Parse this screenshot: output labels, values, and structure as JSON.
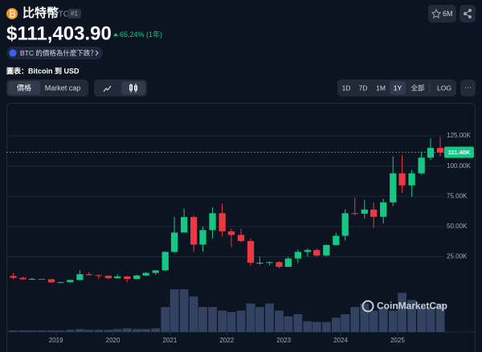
{
  "header": {
    "name": "比特幣",
    "symbol": "BTC",
    "rank": "#1",
    "watchlist": "6M",
    "price": "$111,403.90",
    "change": "65.24% (1年)",
    "question": "BTC 的價格為什麼下跌？"
  },
  "chart_label": "圖表：Bitcoin 到 USD",
  "tabs": [
    "價格",
    "Market cap"
  ],
  "ranges": [
    "1D",
    "7D",
    "1M",
    "1Y",
    "全部",
    "LOG"
  ],
  "more": "···",
  "chart_data": {
    "type": "candlestick",
    "x": [
      2018.25,
      2018.42,
      2018.58,
      2018.75,
      2018.92,
      2019.08,
      2019.25,
      2019.42,
      2019.58,
      2019.75,
      2019.92,
      2020.08,
      2020.25,
      2020.42,
      2020.58,
      2020.75,
      2020.92,
      2021.08,
      2021.25,
      2021.42,
      2021.58,
      2021.75,
      2021.92,
      2022.08,
      2022.25,
      2022.42,
      2022.58,
      2022.75,
      2022.92,
      2023.08,
      2023.25,
      2023.42,
      2023.58,
      2023.75,
      2023.92,
      2024.08,
      2024.25,
      2024.42,
      2024.58,
      2024.75,
      2024.92,
      2025.08,
      2025.25,
      2025.42,
      2025.58,
      2025.75
    ],
    "open": [
      9000,
      7500,
      6300,
      6600,
      6300,
      3800,
      3900,
      5700,
      10500,
      9700,
      9200,
      7200,
      8600,
      6600,
      9400,
      11600,
      13700,
      29000,
      45000,
      57800,
      35000,
      47000,
      61000,
      46000,
      43000,
      38000,
      20000,
      20000,
      20500,
      16600,
      23500,
      29000,
      30500,
      26000,
      34700,
      42300,
      61000,
      60600,
      64000,
      58000,
      70000,
      94000,
      84000,
      94000,
      107000,
      115000
    ],
    "high": [
      11500,
      8500,
      7500,
      6700,
      6400,
      4100,
      5900,
      13800,
      12300,
      10400,
      9600,
      10500,
      9200,
      10000,
      12400,
      13800,
      29300,
      58000,
      64800,
      59000,
      50000,
      66000,
      69000,
      48000,
      48000,
      40000,
      25000,
      21000,
      21400,
      25000,
      31000,
      31800,
      31800,
      35000,
      44700,
      64000,
      73800,
      72000,
      70000,
      73000,
      108000,
      109000,
      97000,
      112000,
      123000,
      124000
    ],
    "low": [
      6500,
      6000,
      6000,
      6200,
      3200,
      3400,
      3900,
      5400,
      9500,
      6500,
      6500,
      6900,
      3800,
      6500,
      9000,
      10000,
      13200,
      28000,
      45000,
      29000,
      29300,
      40000,
      42000,
      33000,
      37000,
      17600,
      18500,
      18000,
      15500,
      16500,
      19600,
      25000,
      25000,
      25000,
      34000,
      38500,
      59000,
      56500,
      49000,
      52500,
      66800,
      78000,
      74500,
      93000,
      105000,
      108000
    ],
    "close": [
      7500,
      6300,
      6600,
      6300,
      3800,
      3900,
      5700,
      10500,
      9700,
      9200,
      7200,
      8600,
      6600,
      9400,
      11600,
      13700,
      29000,
      45000,
      57800,
      35000,
      47000,
      61000,
      46000,
      43000,
      38000,
      20000,
      20000,
      20500,
      16600,
      23500,
      29000,
      30500,
      26000,
      34700,
      42300,
      61000,
      60600,
      64000,
      58000,
      70000,
      94000,
      84000,
      94000,
      107000,
      115000,
      111400
    ],
    "volume": [
      2000000000,
      2000000000,
      2000000000,
      2000000000,
      2000000000,
      2000000000,
      3000000000,
      4000000000,
      3000000000,
      3000000000,
      3000000000,
      4000000000,
      5000000000,
      4000000000,
      4000000000,
      5000000000,
      35000000000,
      60000000000,
      60000000000,
      50000000000,
      35000000000,
      35000000000,
      30000000000,
      28000000000,
      30000000000,
      40000000000,
      35000000000,
      40000000000,
      30000000000,
      22000000000,
      25000000000,
      15000000000,
      14000000000,
      14000000000,
      20000000000,
      25000000000,
      35000000000,
      40000000000,
      30000000000,
      35000000000,
      30000000000,
      55000000000,
      45000000000,
      35000000000,
      35000000000,
      40000000000
    ],
    "xlim": [
      2018.13,
      2025.82
    ],
    "xticks": [
      2019,
      2020,
      2021,
      2022,
      2023,
      2024,
      2025
    ],
    "ylim": [
      0,
      151000
    ],
    "yticks": [
      {
        "value": 25000,
        "label": "25.00K"
      },
      {
        "value": 50000,
        "label": "50.00K"
      },
      {
        "value": 75000,
        "label": "75.00K"
      },
      {
        "value": 100000,
        "label": "100.00K"
      },
      {
        "value": 125000,
        "label": "125.00K"
      }
    ],
    "grid": true,
    "current_price": 111403.9,
    "current_price_label": "111.40K",
    "up_color": "#16c784",
    "down_color": "#ea3943",
    "volume_color": "#3b4a6b",
    "watermark": "CoinMarketCap"
  }
}
